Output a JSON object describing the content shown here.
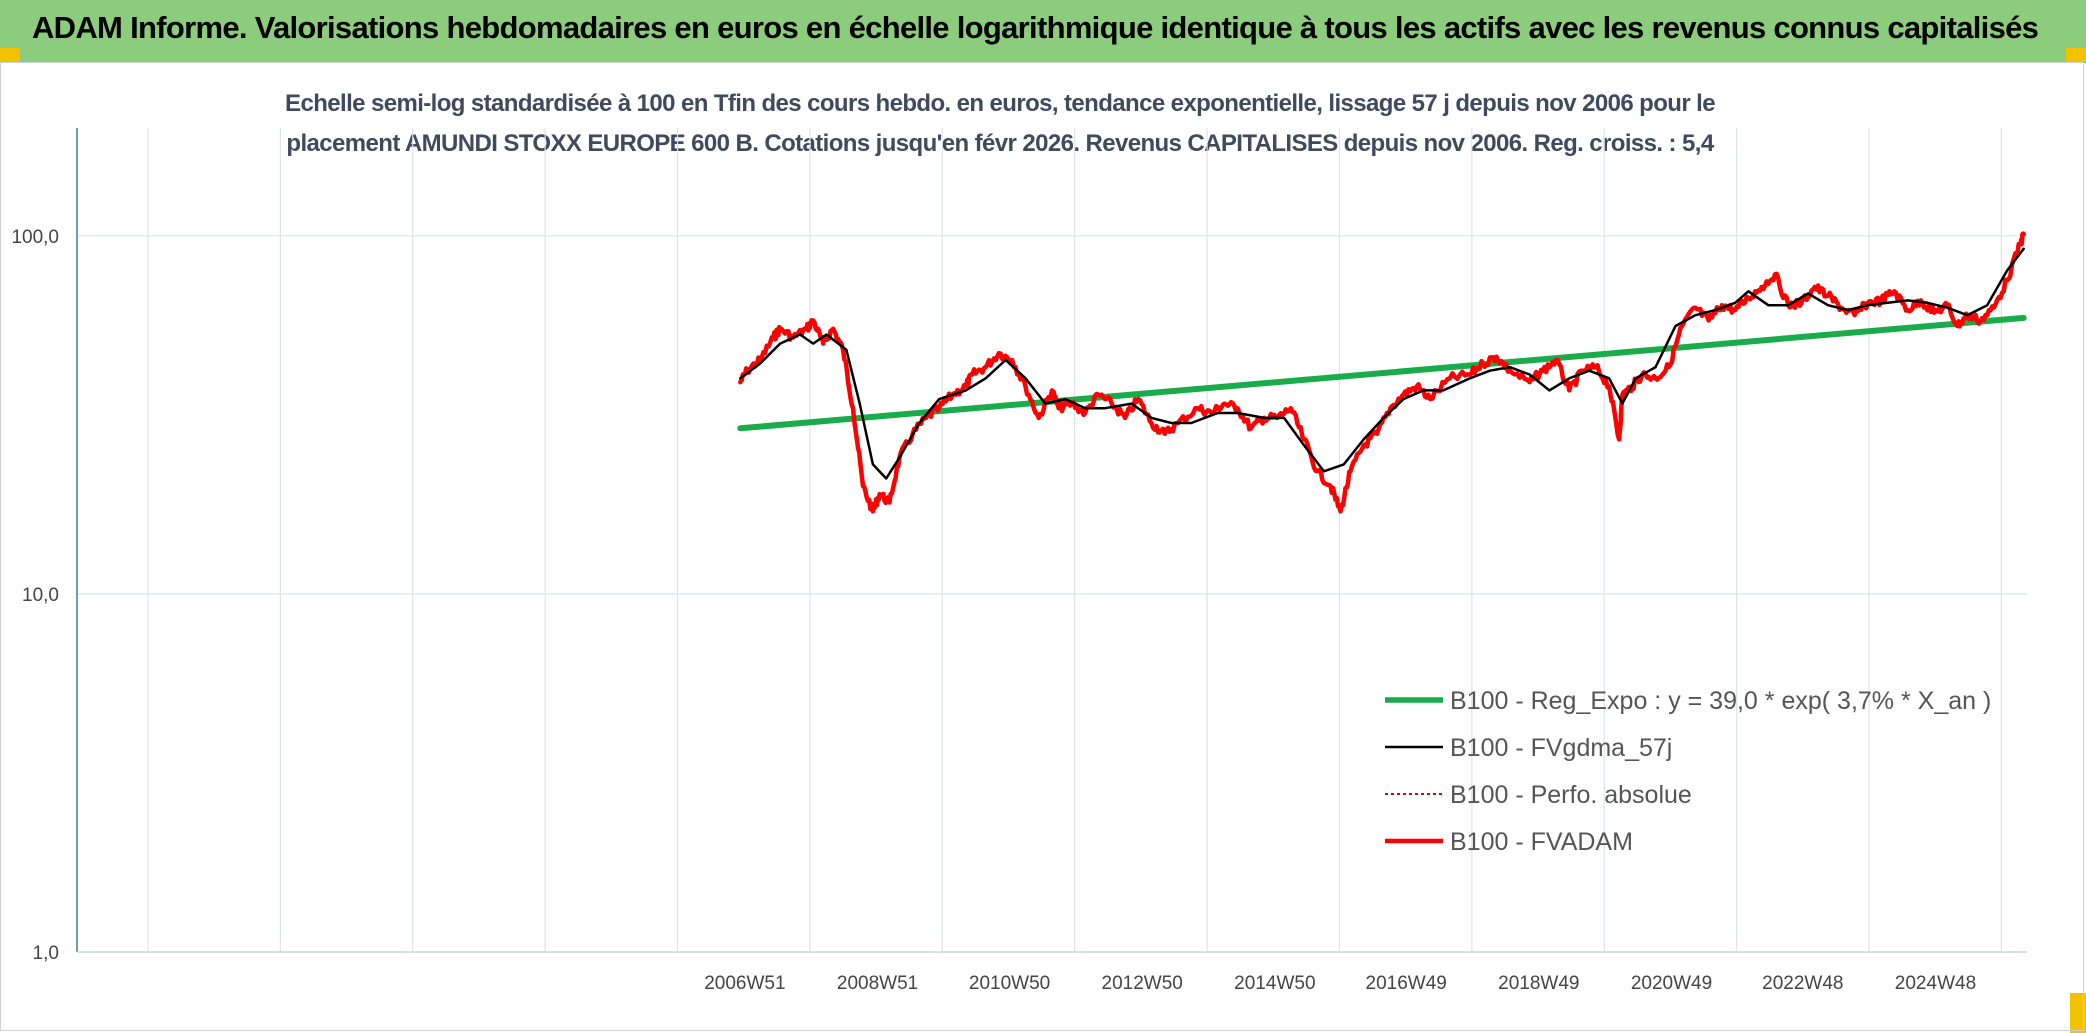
{
  "header": {
    "title": "ADAM Informe. Valorisations hebdomadaires en euros en échelle logarithmique identique à tous les actifs avec les revenus connus capitalisés"
  },
  "colors": {
    "banner": "#8ccc7d",
    "corner_accent": "#f2c200",
    "regression": "#1aab4a",
    "smoothed": "#000000",
    "perf": "#e00000",
    "fvadam": "#ff0000",
    "grid": "#dde3ea",
    "axis": "#4472c4"
  },
  "chart_data": {
    "type": "line",
    "title_lines": [
      "Echelle semi-log standardisée à 100 en Tfin des cours hebdo. en euros, tendance exponentielle, lissage 57 j depuis nov 2006 pour le",
      "placement AMUNDI STOXX EUROPE 600 B. Cotations jusqu'en févr 2026. Revenus CAPITALISES depuis nov 2006. Reg. croiss. : 5,4"
    ],
    "y_scale": "log",
    "ylim": [
      1,
      200
    ],
    "y_ticks": [
      {
        "value": 1,
        "label": "1,0"
      },
      {
        "value": 10,
        "label": "10,0"
      },
      {
        "value": 100,
        "label": "100,0"
      }
    ],
    "xlim": [
      1996.9,
      2026.3
    ],
    "x_ticks": [
      {
        "value": 2006.97,
        "label": "2006W51"
      },
      {
        "value": 2008.97,
        "label": "2008W51"
      },
      {
        "value": 2010.96,
        "label": "2010W50"
      },
      {
        "value": 2012.96,
        "label": "2012W50"
      },
      {
        "value": 2014.96,
        "label": "2014W50"
      },
      {
        "value": 2016.94,
        "label": "2016W49"
      },
      {
        "value": 2018.94,
        "label": "2018W49"
      },
      {
        "value": 2020.94,
        "label": "2020W49"
      },
      {
        "value": 2022.92,
        "label": "2022W48"
      },
      {
        "value": 2024.92,
        "label": "2024W48"
      }
    ],
    "grid": true,
    "legend_position": "bottom-right",
    "series": [
      {
        "name": "B100 - Reg_Expo : y = 39,0 * exp( 3,7% *  X_an )",
        "style": "regression",
        "x": [
          2006.9,
          2026.25
        ],
        "y": [
          29.0,
          59.0
        ]
      },
      {
        "name": "B100 - FVgdma_57j",
        "style": "smoothed",
        "x": [
          2006.9,
          2007.2,
          2007.5,
          2007.8,
          2008.0,
          2008.2,
          2008.5,
          2008.7,
          2008.9,
          2009.1,
          2009.3,
          2009.6,
          2009.9,
          2010.3,
          2010.6,
          2010.9,
          2011.2,
          2011.5,
          2011.8,
          2012.1,
          2012.4,
          2012.8,
          2013.1,
          2013.4,
          2013.7,
          2014.1,
          2014.4,
          2014.8,
          2015.1,
          2015.4,
          2015.7,
          2016.0,
          2016.3,
          2016.6,
          2016.9,
          2017.2,
          2017.5,
          2017.9,
          2018.2,
          2018.5,
          2018.8,
          2019.1,
          2019.4,
          2019.7,
          2020.0,
          2020.2,
          2020.4,
          2020.7,
          2021.0,
          2021.3,
          2021.6,
          2021.9,
          2022.1,
          2022.4,
          2022.7,
          2023.0,
          2023.3,
          2023.6,
          2023.9,
          2024.2,
          2024.5,
          2024.8,
          2025.1,
          2025.4,
          2025.7,
          2026.0,
          2026.25
        ],
        "y": [
          40,
          44,
          50,
          53,
          50,
          53,
          48,
          34,
          23,
          21,
          24,
          30,
          35,
          37,
          40,
          45,
          40,
          34,
          35,
          33,
          33,
          34,
          31,
          30,
          30,
          32,
          32,
          31,
          31,
          26,
          22,
          23,
          27,
          31,
          35,
          37,
          37,
          40,
          42,
          43,
          41,
          37,
          40,
          42,
          40,
          34,
          40,
          43,
          56,
          60,
          62,
          65,
          70,
          64,
          64,
          69,
          64,
          62,
          64,
          65,
          66,
          65,
          63,
          60,
          64,
          80,
          92
        ]
      },
      {
        "name": "B100 - Perfo. absolue",
        "style": "perf",
        "x": [],
        "y": []
      },
      {
        "name": "B100 - FVADAM",
        "style": "fvadam",
        "x": [
          2006.9,
          2007.0,
          2007.2,
          2007.4,
          2007.5,
          2007.7,
          2007.9,
          2008.0,
          2008.15,
          2008.3,
          2008.45,
          2008.6,
          2008.75,
          2008.9,
          2009.0,
          2009.15,
          2009.3,
          2009.5,
          2009.7,
          2009.9,
          2010.1,
          2010.3,
          2010.4,
          2010.6,
          2010.8,
          2011.0,
          2011.2,
          2011.4,
          2011.6,
          2011.7,
          2011.9,
          2012.1,
          2012.3,
          2012.5,
          2012.7,
          2012.9,
          2013.1,
          2013.3,
          2013.5,
          2013.8,
          2014.0,
          2014.2,
          2014.4,
          2014.6,
          2014.8,
          2015.0,
          2015.2,
          2015.4,
          2015.6,
          2015.8,
          2015.95,
          2016.1,
          2016.3,
          2016.5,
          2016.7,
          2016.9,
          2017.1,
          2017.3,
          2017.6,
          2017.9,
          2018.1,
          2018.3,
          2018.5,
          2018.8,
          2019.0,
          2019.2,
          2019.4,
          2019.6,
          2019.8,
          2020.0,
          2020.15,
          2020.2,
          2020.35,
          2020.5,
          2020.7,
          2020.9,
          2021.1,
          2021.3,
          2021.5,
          2021.7,
          2021.9,
          2022.1,
          2022.3,
          2022.5,
          2022.7,
          2022.9,
          2023.1,
          2023.3,
          2023.5,
          2023.7,
          2023.9,
          2024.1,
          2024.3,
          2024.5,
          2024.7,
          2024.9,
          2025.1,
          2025.25,
          2025.4,
          2025.6,
          2025.8,
          2026.0,
          2026.2,
          2026.25
        ],
        "y": [
          39,
          42,
          45,
          52,
          55,
          52,
          55,
          58,
          50,
          55,
          48,
          33,
          20,
          17,
          19,
          18,
          24,
          28,
          31,
          33,
          36,
          38,
          41,
          43,
          47,
          45,
          38,
          31,
          37,
          33,
          34,
          32,
          36,
          34,
          31,
          35,
          30,
          28,
          30,
          33,
          32,
          34,
          33,
          29,
          31,
          31,
          33,
          27,
          22,
          20,
          17,
          22,
          26,
          28,
          33,
          36,
          38,
          35,
          40,
          41,
          44,
          46,
          42,
          39,
          42,
          45,
          37,
          42,
          43,
          38,
          27,
          36,
          38,
          41,
          40,
          43,
          56,
          63,
          58,
          64,
          62,
          67,
          72,
          78,
          64,
          65,
          72,
          68,
          63,
          60,
          65,
          66,
          70,
          62,
          66,
          61,
          64,
          56,
          60,
          58,
          63,
          75,
          95,
          101
        ]
      }
    ]
  }
}
